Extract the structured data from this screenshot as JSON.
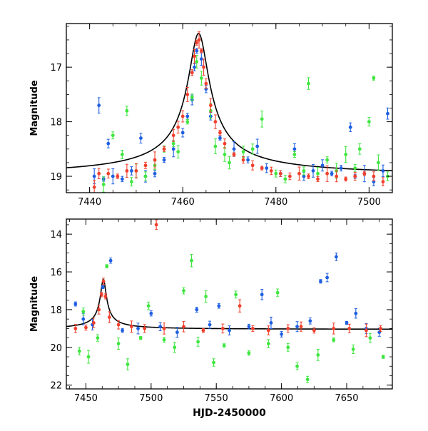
{
  "colors": {
    "blue": "#1f5fe0",
    "green": "#3fe63f",
    "red": "#f0402e",
    "model": "#000000",
    "frame": "#000000"
  },
  "chart_data": [
    {
      "type": "scatter",
      "panel": "top",
      "xlabel": "",
      "ylabel": "Magnitude",
      "xlim": [
        7435,
        7505
      ],
      "ylim": [
        19.3,
        16.2
      ],
      "y_inverted": true,
      "xticks": [
        7440,
        7460,
        7480,
        7500
      ],
      "xticklabels": [
        "7440",
        "7460",
        "7480",
        "7500"
      ],
      "yticks": [
        17,
        18,
        19
      ],
      "yticklabels": [
        "17",
        "18",
        "19"
      ],
      "model_curve": {
        "color": "black",
        "t0": 7463.4,
        "peak": 16.38,
        "base": 19.0
      },
      "series": [
        {
          "color": "blue",
          "points": [
            {
              "x": 7441,
              "y": 19.0
            },
            {
              "x": 7442,
              "y": 17.7
            },
            {
              "x": 7443,
              "y": 19.05
            },
            {
              "x": 7444,
              "y": 18.4
            },
            {
              "x": 7445,
              "y": 19.0
            },
            {
              "x": 7447,
              "y": 19.05
            },
            {
              "x": 7449,
              "y": 18.9
            },
            {
              "x": 7451,
              "y": 18.3
            },
            {
              "x": 7452,
              "y": 19.0
            },
            {
              "x": 7454,
              "y": 18.95
            },
            {
              "x": 7456,
              "y": 18.7
            },
            {
              "x": 7458,
              "y": 18.5
            },
            {
              "x": 7460,
              "y": 18.2
            },
            {
              "x": 7461,
              "y": 17.9
            },
            {
              "x": 7462,
              "y": 17.6
            },
            {
              "x": 7462.5,
              "y": 17.0
            },
            {
              "x": 7463,
              "y": 16.7
            },
            {
              "x": 7464,
              "y": 16.85
            },
            {
              "x": 7465,
              "y": 17.4
            },
            {
              "x": 7466,
              "y": 17.9
            },
            {
              "x": 7468,
              "y": 18.3
            },
            {
              "x": 7471,
              "y": 18.5
            },
            {
              "x": 7474,
              "y": 18.7
            },
            {
              "x": 7476,
              "y": 18.45
            },
            {
              "x": 7478,
              "y": 18.85
            },
            {
              "x": 7481,
              "y": 18.95
            },
            {
              "x": 7484,
              "y": 18.5
            },
            {
              "x": 7486,
              "y": 19.0
            },
            {
              "x": 7488,
              "y": 18.9
            },
            {
              "x": 7490,
              "y": 18.8
            },
            {
              "x": 7492,
              "y": 18.95
            },
            {
              "x": 7494,
              "y": 18.85
            },
            {
              "x": 7496,
              "y": 18.1
            },
            {
              "x": 7497,
              "y": 19.0
            },
            {
              "x": 7499,
              "y": 18.95
            },
            {
              "x": 7501,
              "y": 19.1
            },
            {
              "x": 7503,
              "y": 18.9
            },
            {
              "x": 7504,
              "y": 17.85
            }
          ]
        },
        {
          "color": "green",
          "points": [
            {
              "x": 7443,
              "y": 19.15
            },
            {
              "x": 7445,
              "y": 18.25
            },
            {
              "x": 7447,
              "y": 18.6
            },
            {
              "x": 7448,
              "y": 17.8
            },
            {
              "x": 7449,
              "y": 19.1
            },
            {
              "x": 7450,
              "y": 18.9
            },
            {
              "x": 7452,
              "y": 19.0
            },
            {
              "x": 7454,
              "y": 18.8
            },
            {
              "x": 7456,
              "y": 18.5
            },
            {
              "x": 7458,
              "y": 18.4
            },
            {
              "x": 7459,
              "y": 18.55
            },
            {
              "x": 7461,
              "y": 18.0
            },
            {
              "x": 7462,
              "y": 17.55
            },
            {
              "x": 7463,
              "y": 16.9
            },
            {
              "x": 7464,
              "y": 17.2
            },
            {
              "x": 7466,
              "y": 17.8
            },
            {
              "x": 7467,
              "y": 18.45
            },
            {
              "x": 7469,
              "y": 18.6
            },
            {
              "x": 7470,
              "y": 18.75
            },
            {
              "x": 7473,
              "y": 18.55
            },
            {
              "x": 7475,
              "y": 18.5
            },
            {
              "x": 7477,
              "y": 17.95
            },
            {
              "x": 7480,
              "y": 18.95
            },
            {
              "x": 7482,
              "y": 19.05
            },
            {
              "x": 7484,
              "y": 18.6
            },
            {
              "x": 7486,
              "y": 18.9
            },
            {
              "x": 7487,
              "y": 17.3
            },
            {
              "x": 7489,
              "y": 18.95
            },
            {
              "x": 7491,
              "y": 18.7
            },
            {
              "x": 7493,
              "y": 18.9
            },
            {
              "x": 7495,
              "y": 18.6
            },
            {
              "x": 7497,
              "y": 18.85
            },
            {
              "x": 7498,
              "y": 18.5
            },
            {
              "x": 7500,
              "y": 18.0
            },
            {
              "x": 7501,
              "y": 17.2
            },
            {
              "x": 7502,
              "y": 18.75
            },
            {
              "x": 7504,
              "y": 19.0
            }
          ]
        },
        {
          "color": "red",
          "points": [
            {
              "x": 7441,
              "y": 19.2
            },
            {
              "x": 7442,
              "y": 18.95
            },
            {
              "x": 7444,
              "y": 18.95
            },
            {
              "x": 7446,
              "y": 19.0
            },
            {
              "x": 7448,
              "y": 18.9
            },
            {
              "x": 7450,
              "y": 18.9
            },
            {
              "x": 7452,
              "y": 18.8
            },
            {
              "x": 7454,
              "y": 18.7
            },
            {
              "x": 7456,
              "y": 18.5
            },
            {
              "x": 7458,
              "y": 18.25
            },
            {
              "x": 7459,
              "y": 18.1
            },
            {
              "x": 7460,
              "y": 17.9
            },
            {
              "x": 7461,
              "y": 17.5
            },
            {
              "x": 7462,
              "y": 17.1
            },
            {
              "x": 7462.5,
              "y": 16.8
            },
            {
              "x": 7463,
              "y": 16.55
            },
            {
              "x": 7463.5,
              "y": 16.5
            },
            {
              "x": 7464,
              "y": 16.7
            },
            {
              "x": 7464.5,
              "y": 17.0
            },
            {
              "x": 7465,
              "y": 17.3
            },
            {
              "x": 7466,
              "y": 17.7
            },
            {
              "x": 7467,
              "y": 18.0
            },
            {
              "x": 7468,
              "y": 18.2
            },
            {
              "x": 7469,
              "y": 18.4
            },
            {
              "x": 7471,
              "y": 18.6
            },
            {
              "x": 7473,
              "y": 18.7
            },
            {
              "x": 7475,
              "y": 18.8
            },
            {
              "x": 7477,
              "y": 18.85
            },
            {
              "x": 7479,
              "y": 18.9
            },
            {
              "x": 7481,
              "y": 18.95
            },
            {
              "x": 7483,
              "y": 19.0
            },
            {
              "x": 7485,
              "y": 18.95
            },
            {
              "x": 7487,
              "y": 19.0
            },
            {
              "x": 7489,
              "y": 19.05
            },
            {
              "x": 7491,
              "y": 18.95
            },
            {
              "x": 7493,
              "y": 19.0
            },
            {
              "x": 7495,
              "y": 19.05
            },
            {
              "x": 7497,
              "y": 19.0
            },
            {
              "x": 7499,
              "y": 18.95
            },
            {
              "x": 7501,
              "y": 19.0
            },
            {
              "x": 7503,
              "y": 19.1
            }
          ]
        }
      ]
    },
    {
      "type": "scatter",
      "panel": "bottom",
      "xlabel": "HJD-2450000",
      "ylabel": "Magnitude",
      "xlim": [
        7435,
        7685
      ],
      "ylim": [
        22.2,
        13.2
      ],
      "y_inverted": true,
      "xticks": [
        7450,
        7500,
        7550,
        7600,
        7650
      ],
      "xticklabels": [
        "7450",
        "7500",
        "7550",
        "7600",
        "7650"
      ],
      "yticks": [
        14,
        16,
        18,
        20,
        22
      ],
      "yticklabels": [
        "14",
        "16",
        "18",
        "20",
        "22"
      ],
      "model_curve": {
        "color": "black",
        "t0": 7463.4,
        "peak": 16.38,
        "base": 19.05
      },
      "series": [
        {
          "color": "blue",
          "points": [
            {
              "x": 7442,
              "y": 17.7
            },
            {
              "x": 7448,
              "y": 18.5
            },
            {
              "x": 7455,
              "y": 18.8
            },
            {
              "x": 7463,
              "y": 16.8
            },
            {
              "x": 7469,
              "y": 15.4
            },
            {
              "x": 7478,
              "y": 19.1
            },
            {
              "x": 7490,
              "y": 19.0
            },
            {
              "x": 7500,
              "y": 18.2
            },
            {
              "x": 7507,
              "y": 18.9
            },
            {
              "x": 7520,
              "y": 19.2
            },
            {
              "x": 7535,
              "y": 18.0
            },
            {
              "x": 7545,
              "y": 18.8
            },
            {
              "x": 7552,
              "y": 17.8
            },
            {
              "x": 7560,
              "y": 19.1
            },
            {
              "x": 7575,
              "y": 18.9
            },
            {
              "x": 7585,
              "y": 17.2
            },
            {
              "x": 7592,
              "y": 18.7
            },
            {
              "x": 7600,
              "y": 19.3
            },
            {
              "x": 7612,
              "y": 18.9
            },
            {
              "x": 7622,
              "y": 18.6
            },
            {
              "x": 7630,
              "y": 16.5
            },
            {
              "x": 7635,
              "y": 16.3
            },
            {
              "x": 7642,
              "y": 15.2
            },
            {
              "x": 7650,
              "y": 18.7
            },
            {
              "x": 7657,
              "y": 18.2
            },
            {
              "x": 7665,
              "y": 19.0
            },
            {
              "x": 7675,
              "y": 19.2
            }
          ]
        },
        {
          "color": "green",
          "points": [
            {
              "x": 7445,
              "y": 20.2
            },
            {
              "x": 7448,
              "y": 18.1
            },
            {
              "x": 7452,
              "y": 20.5
            },
            {
              "x": 7459,
              "y": 19.5
            },
            {
              "x": 7466,
              "y": 15.7
            },
            {
              "x": 7475,
              "y": 19.8
            },
            {
              "x": 7482,
              "y": 20.9
            },
            {
              "x": 7492,
              "y": 19.5
            },
            {
              "x": 7498,
              "y": 17.8
            },
            {
              "x": 7510,
              "y": 19.6
            },
            {
              "x": 7518,
              "y": 20.0
            },
            {
              "x": 7525,
              "y": 17.0
            },
            {
              "x": 7531,
              "y": 15.4
            },
            {
              "x": 7536,
              "y": 19.7
            },
            {
              "x": 7542,
              "y": 17.3
            },
            {
              "x": 7548,
              "y": 20.8
            },
            {
              "x": 7556,
              "y": 19.9
            },
            {
              "x": 7565,
              "y": 17.2
            },
            {
              "x": 7575,
              "y": 20.3
            },
            {
              "x": 7590,
              "y": 19.8
            },
            {
              "x": 7597,
              "y": 17.1
            },
            {
              "x": 7605,
              "y": 20.0
            },
            {
              "x": 7612,
              "y": 21.0
            },
            {
              "x": 7620,
              "y": 21.7
            },
            {
              "x": 7628,
              "y": 20.4
            },
            {
              "x": 7640,
              "y": 19.6
            },
            {
              "x": 7655,
              "y": 20.1
            },
            {
              "x": 7668,
              "y": 19.5
            },
            {
              "x": 7678,
              "y": 20.5
            }
          ]
        },
        {
          "color": "red",
          "points": [
            {
              "x": 7442,
              "y": 19.0
            },
            {
              "x": 7450,
              "y": 18.95
            },
            {
              "x": 7456,
              "y": 18.7
            },
            {
              "x": 7460,
              "y": 18.0
            },
            {
              "x": 7462,
              "y": 17.2
            },
            {
              "x": 7463.5,
              "y": 16.5
            },
            {
              "x": 7465,
              "y": 17.3
            },
            {
              "x": 7468,
              "y": 18.4
            },
            {
              "x": 7475,
              "y": 18.8
            },
            {
              "x": 7485,
              "y": 18.9
            },
            {
              "x": 7495,
              "y": 19.0
            },
            {
              "x": 7504,
              "y": 13.5
            },
            {
              "x": 7510,
              "y": 19.0
            },
            {
              "x": 7525,
              "y": 18.9
            },
            {
              "x": 7540,
              "y": 19.1
            },
            {
              "x": 7555,
              "y": 19.0
            },
            {
              "x": 7568,
              "y": 17.8
            },
            {
              "x": 7578,
              "y": 19.0
            },
            {
              "x": 7590,
              "y": 19.1
            },
            {
              "x": 7605,
              "y": 19.0
            },
            {
              "x": 7615,
              "y": 18.9
            },
            {
              "x": 7625,
              "y": 19.1
            },
            {
              "x": 7640,
              "y": 19.0
            },
            {
              "x": 7652,
              "y": 19.0
            },
            {
              "x": 7665,
              "y": 19.1
            },
            {
              "x": 7676,
              "y": 19.0
            }
          ]
        }
      ]
    }
  ]
}
